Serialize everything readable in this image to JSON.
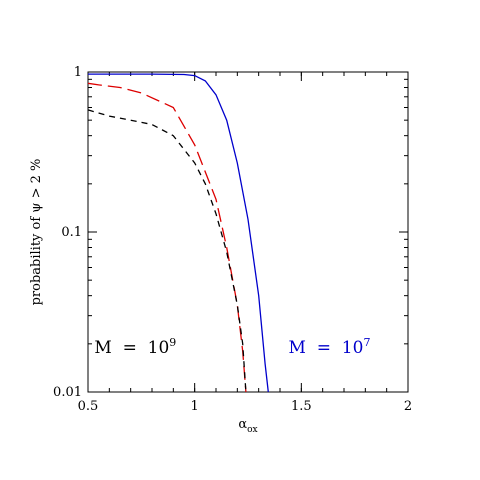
{
  "chart_data": {
    "type": "line",
    "title": "",
    "xlabel": "α",
    "xlabel_sub": "ox",
    "ylabel": "probability of ψ > 2 %",
    "xlim": [
      0.5,
      2
    ],
    "ylim": [
      0.01,
      1
    ],
    "yscale": "log",
    "grid": false,
    "x_ticks": [
      {
        "value": 0.5,
        "label": "0.5"
      },
      {
        "value": 1,
        "label": "1"
      },
      {
        "value": 1.5,
        "label": "1.5"
      },
      {
        "value": 2,
        "label": "2"
      }
    ],
    "y_ticks": [
      {
        "value": 0.01,
        "label": "0.01"
      },
      {
        "value": 0.1,
        "label": "0.1"
      },
      {
        "value": 1,
        "label": "1"
      }
    ],
    "series": [
      {
        "color": "#0000cc",
        "dash": "solid",
        "x": [
          0.5,
          0.8,
          0.95,
          1.0,
          1.05,
          1.1,
          1.15,
          1.2,
          1.25,
          1.3,
          1.33,
          1.345
        ],
        "y": [
          0.97,
          0.97,
          0.965,
          0.95,
          0.88,
          0.72,
          0.5,
          0.27,
          0.12,
          0.04,
          0.015,
          0.01
        ]
      },
      {
        "color": "#dd0000",
        "dash": "long",
        "x": [
          0.5,
          0.55,
          0.65,
          0.75,
          0.9,
          1.0,
          1.1,
          1.15,
          1.2,
          1.225,
          1.24
        ],
        "y": [
          0.85,
          0.83,
          0.8,
          0.74,
          0.6,
          0.35,
          0.16,
          0.08,
          0.035,
          0.018,
          0.01
        ]
      },
      {
        "color": "#000000",
        "dash": "short",
        "x": [
          0.5,
          0.6,
          0.7,
          0.8,
          0.9,
          1.0,
          1.05,
          1.1,
          1.15,
          1.2,
          1.225,
          1.24
        ],
        "y": [
          0.58,
          0.53,
          0.5,
          0.47,
          0.4,
          0.27,
          0.2,
          0.13,
          0.075,
          0.035,
          0.02,
          0.01
        ]
      }
    ],
    "annotations": [
      {
        "text": "M  =  10",
        "sup": "9",
        "color": "#000000",
        "x": 0.53,
        "y": 0.0175
      },
      {
        "text": "M  =  10",
        "sup": "7",
        "color": "#0000cc",
        "x": 1.44,
        "y": 0.0175
      }
    ]
  }
}
